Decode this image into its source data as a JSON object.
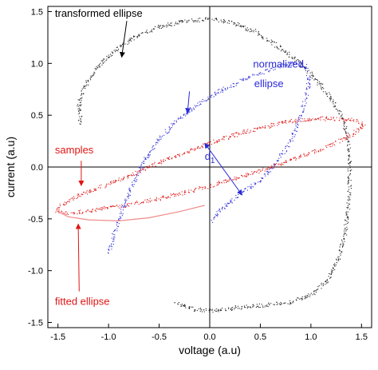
{
  "chart_data": {
    "type": "scatter",
    "title": "",
    "xlabel": "voltage (a.u)",
    "ylabel": "current (a.u)",
    "xlim": [
      -1.6,
      1.6
    ],
    "ylim": [
      -1.55,
      1.55
    ],
    "xticks": [
      -1.5,
      -1.0,
      -0.5,
      0.0,
      0.5,
      1.0,
      1.5
    ],
    "yticks": [
      -1.5,
      -1.0,
      -0.5,
      0.0,
      0.5,
      1.0,
      1.5
    ],
    "xtick_labels": [
      "-1.5",
      "-1.0",
      "-0.5",
      "0.0",
      "0.5",
      "1.0",
      "1.5"
    ],
    "ytick_labels": [
      "-1.5",
      "-1.0",
      "-0.5",
      "0.0",
      "0.5",
      "1.0",
      "1.5"
    ],
    "grid": false,
    "zero_lines": true,
    "series": [
      {
        "name": "transformed ellipse",
        "color": "#222222",
        "kind": "scatter-band",
        "points": [
          [
            -1.28,
            0.42
          ],
          [
            -1.3,
            0.6
          ],
          [
            -1.25,
            0.75
          ],
          [
            -1.18,
            0.88
          ],
          [
            -1.06,
            1.02
          ],
          [
            -0.9,
            1.16
          ],
          [
            -0.7,
            1.28
          ],
          [
            -0.45,
            1.37
          ],
          [
            -0.2,
            1.42
          ],
          [
            0.0,
            1.43
          ],
          [
            0.2,
            1.4
          ],
          [
            0.42,
            1.32
          ],
          [
            0.62,
            1.2
          ],
          [
            0.82,
            1.06
          ],
          [
            0.98,
            0.92
          ],
          [
            1.12,
            0.76
          ],
          [
            1.24,
            0.6
          ],
          [
            1.32,
            0.44
          ],
          [
            1.36,
            0.28
          ],
          [
            1.38,
            0.1
          ],
          [
            1.38,
            -0.1
          ],
          [
            1.37,
            -0.35
          ],
          [
            1.34,
            -0.6
          ],
          [
            1.28,
            -0.85
          ],
          [
            1.18,
            -1.07
          ],
          [
            1.02,
            -1.22
          ],
          [
            0.8,
            -1.3
          ],
          [
            0.55,
            -1.33
          ],
          [
            0.3,
            -1.35
          ],
          [
            0.05,
            -1.38
          ],
          [
            -0.15,
            -1.37
          ],
          [
            -0.35,
            -1.31
          ]
        ]
      },
      {
        "name": "normalized ellipse",
        "color": "#2a2ad8",
        "kind": "scatter-band",
        "points": [
          [
            -1.0,
            -0.82
          ],
          [
            -0.94,
            -0.62
          ],
          [
            -0.86,
            -0.4
          ],
          [
            -0.76,
            -0.15
          ],
          [
            -0.64,
            0.08
          ],
          [
            -0.5,
            0.28
          ],
          [
            -0.32,
            0.46
          ],
          [
            -0.12,
            0.6
          ],
          [
            0.1,
            0.74
          ],
          [
            0.32,
            0.84
          ],
          [
            0.52,
            0.92
          ],
          [
            0.72,
            0.98
          ],
          [
            0.86,
            1.01
          ],
          [
            0.94,
            0.98
          ],
          [
            0.98,
            0.88
          ],
          [
            0.96,
            0.72
          ],
          [
            0.9,
            0.5
          ],
          [
            0.8,
            0.26
          ],
          [
            0.66,
            0.05
          ],
          [
            0.5,
            -0.12
          ],
          [
            0.32,
            -0.24
          ],
          [
            0.14,
            -0.38
          ],
          [
            0.02,
            -0.52
          ]
        ]
      },
      {
        "name": "samples",
        "color": "#e01414",
        "kind": "scatter-band",
        "points": [
          [
            -1.52,
            -0.42
          ],
          [
            -1.45,
            -0.35
          ],
          [
            -1.3,
            -0.27
          ],
          [
            -1.1,
            -0.2
          ],
          [
            -0.9,
            -0.12
          ],
          [
            -0.7,
            -0.04
          ],
          [
            -0.5,
            0.05
          ],
          [
            -0.3,
            0.12
          ],
          [
            -0.1,
            0.2
          ],
          [
            0.1,
            0.27
          ],
          [
            0.3,
            0.33
          ],
          [
            0.5,
            0.38
          ],
          [
            0.7,
            0.43
          ],
          [
            0.9,
            0.46
          ],
          [
            1.1,
            0.47
          ],
          [
            1.3,
            0.47
          ],
          [
            1.45,
            0.45
          ],
          [
            1.52,
            0.42
          ],
          [
            1.48,
            0.37
          ],
          [
            1.38,
            0.3
          ],
          [
            1.2,
            0.22
          ],
          [
            1.0,
            0.14
          ],
          [
            0.8,
            0.07
          ],
          [
            0.6,
            0.0
          ],
          [
            0.4,
            -0.06
          ],
          [
            0.2,
            -0.12
          ],
          [
            0.0,
            -0.18
          ],
          [
            -0.2,
            -0.23
          ],
          [
            -0.4,
            -0.28
          ],
          [
            -0.6,
            -0.32
          ],
          [
            -0.8,
            -0.36
          ],
          [
            -1.0,
            -0.39
          ],
          [
            -1.2,
            -0.42
          ],
          [
            -1.4,
            -0.44
          ],
          [
            -1.5,
            -0.43
          ]
        ]
      },
      {
        "name": "fitted ellipse",
        "color": "#f08a8a",
        "kind": "line",
        "points": [
          [
            -1.52,
            -0.42
          ],
          [
            -1.4,
            -0.48
          ],
          [
            -1.2,
            -0.51
          ],
          [
            -0.9,
            -0.52
          ],
          [
            -0.6,
            -0.49
          ],
          [
            -0.3,
            -0.43
          ],
          [
            -0.05,
            -0.37
          ]
        ]
      }
    ],
    "annotations": [
      {
        "text": "transformed ellipse",
        "color": "#000000",
        "at": [
          -1.53,
          1.45
        ],
        "arrow_from": [
          -0.82,
          1.41
        ],
        "arrow_to": [
          -0.87,
          1.06
        ]
      },
      {
        "text": "normalized",
        "color": "#2a2ad8",
        "at": [
          0.93,
          0.96
        ],
        "anchor": "end"
      },
      {
        "text": "ellipse",
        "color": "#2a2ad8",
        "at": [
          0.73,
          0.77
        ],
        "anchor": "end",
        "arrow_from": [
          -0.2,
          0.73
        ],
        "arrow_to": [
          -0.22,
          0.52
        ]
      },
      {
        "text": "samples",
        "color": "#e01414",
        "at": [
          -1.53,
          0.13
        ],
        "arrow_from": [
          -1.27,
          0.06
        ],
        "arrow_to": [
          -1.27,
          -0.18
        ]
      },
      {
        "text": "fitted ellipse",
        "color": "#e01414",
        "at": [
          -1.53,
          -1.33
        ],
        "arrow_from": [
          -1.29,
          -1.2
        ],
        "arrow_to": [
          -1.3,
          -0.55
        ]
      },
      {
        "text": "d",
        "subscript": "1",
        "color": "#2a2ad8",
        "at": [
          -0.05,
          0.07
        ]
      }
    ]
  }
}
